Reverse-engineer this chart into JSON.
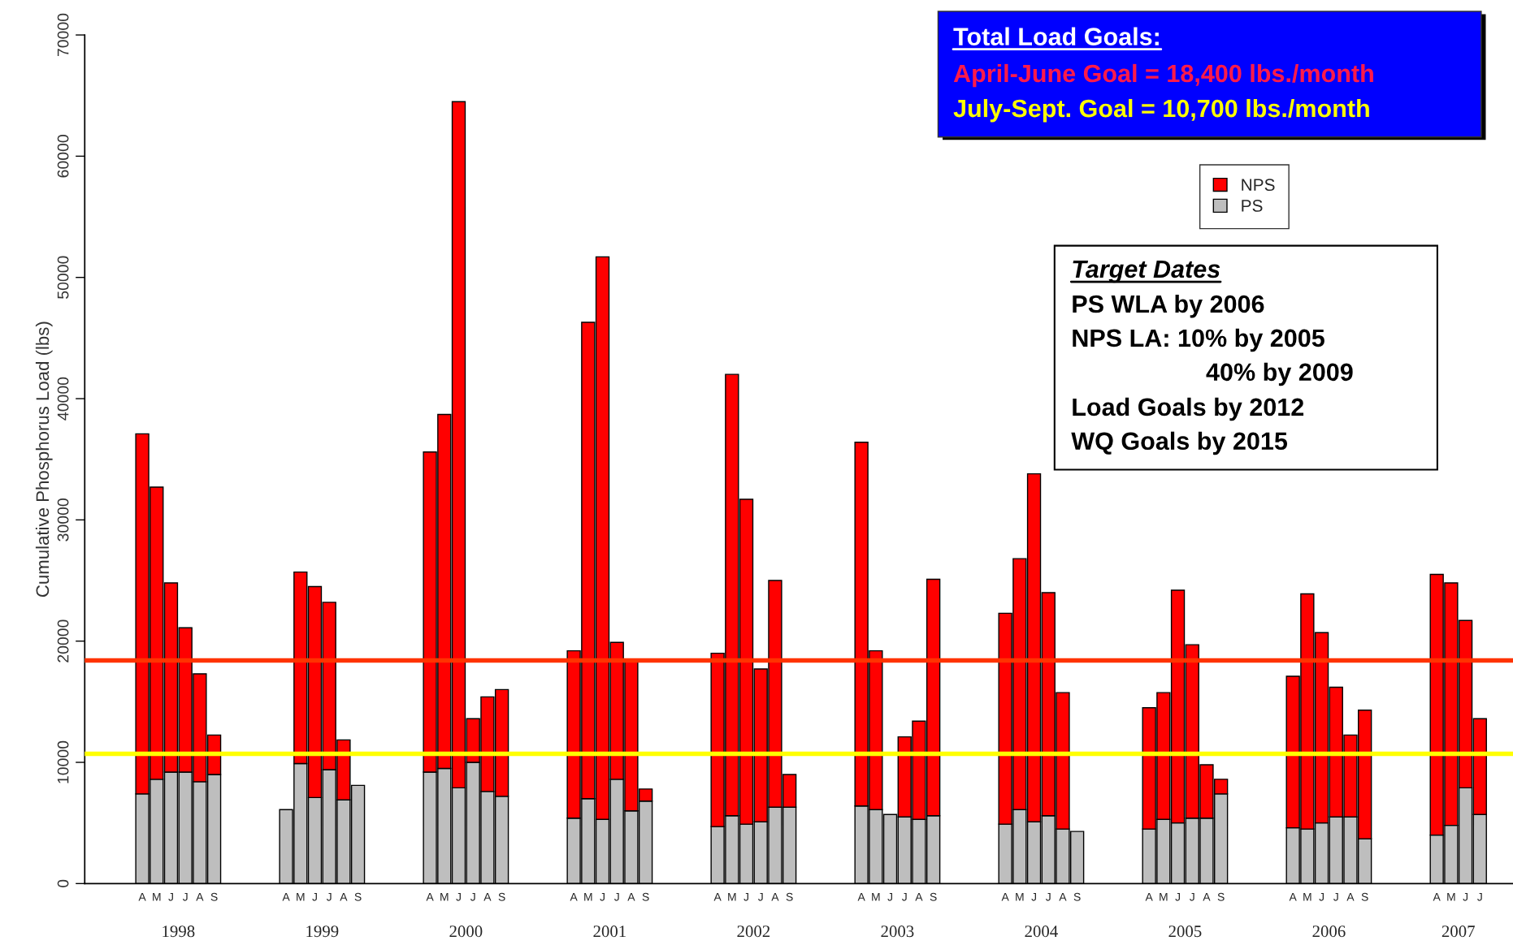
{
  "chart_data": {
    "type": "bar",
    "stacked": true,
    "ylabel": "Cumulative Phosphorus Load (lbs)",
    "categories": [
      "A",
      "M",
      "J",
      "J",
      "A",
      "S",
      null,
      null,
      null,
      null,
      "A",
      "M",
      "J",
      "J",
      "A",
      "S",
      null,
      null,
      null,
      null,
      "A",
      "M",
      "J",
      "J",
      "A",
      "S",
      null,
      null,
      null,
      null,
      "A",
      "M",
      "J",
      "J",
      "A",
      "S",
      null,
      null,
      null,
      null,
      "A",
      "M",
      "J",
      "J",
      "A",
      "S",
      null,
      null,
      null,
      null,
      "A",
      "M",
      "J",
      "J",
      "A",
      "S",
      null,
      null,
      null,
      null,
      "A",
      "M",
      "J",
      "J",
      "A",
      "S",
      null,
      null,
      null,
      null,
      "A",
      "M",
      "J",
      "J",
      "A",
      "S",
      null,
      null,
      null,
      null,
      "A",
      "M",
      "J",
      "J",
      "A",
      "S",
      null,
      null,
      null,
      null,
      "A",
      "M",
      "J",
      "J"
    ],
    "series": [
      {
        "name": "PS",
        "color": "#bebebe",
        "values": [
          7400,
          8600,
          9200,
          9200,
          8400,
          9000,
          null,
          null,
          null,
          null,
          6100,
          9900,
          7100,
          9400,
          6900,
          8100,
          null,
          null,
          null,
          null,
          9200,
          9500,
          7900,
          10000,
          7600,
          7200,
          null,
          null,
          null,
          null,
          5400,
          7000,
          5300,
          8600,
          6000,
          6800,
          null,
          null,
          null,
          null,
          4700,
          5600,
          4900,
          5100,
          6300,
          6300,
          null,
          null,
          null,
          null,
          6400,
          6100,
          5700,
          5500,
          5300,
          5600,
          null,
          null,
          null,
          null,
          4900,
          6100,
          5100,
          5600,
          4500,
          4300,
          null,
          null,
          null,
          null,
          4500,
          5300,
          5000,
          5400,
          5400,
          7400,
          null,
          null,
          null,
          null,
          4600,
          4500,
          5000,
          5500,
          5500,
          3700,
          null,
          null,
          null,
          null,
          4000,
          4800,
          7900,
          5700
        ]
      },
      {
        "name": "NPS",
        "color": "#ff0000",
        "values": [
          29700,
          24100,
          15600,
          11900,
          8900,
          3250,
          null,
          null,
          null,
          null,
          null,
          15800,
          17400,
          13800,
          4950,
          null,
          null,
          null,
          null,
          null,
          26400,
          29200,
          56600,
          3600,
          7800,
          8800,
          null,
          null,
          null,
          null,
          13800,
          39300,
          46400,
          11300,
          12400,
          1000,
          null,
          null,
          null,
          null,
          14300,
          36400,
          26800,
          12600,
          18700,
          2700,
          null,
          null,
          null,
          null,
          30000,
          13100,
          null,
          6600,
          8100,
          19500,
          null,
          null,
          null,
          null,
          17400,
          20700,
          28700,
          18400,
          11250,
          null,
          null,
          null,
          null,
          null,
          10000,
          10450,
          19200,
          14300,
          4400,
          1200,
          null,
          null,
          null,
          null,
          12500,
          19400,
          15700,
          10700,
          6750,
          10600,
          null,
          null,
          null,
          null,
          21500,
          20000,
          13800,
          7900
        ]
      }
    ],
    "ylim": [
      0,
      70000
    ],
    "yticks": [
      0,
      10000,
      20000,
      30000,
      40000,
      50000,
      60000,
      70000
    ],
    "ref_lines": [
      {
        "axis": "y",
        "value": 18400,
        "color": "#ff3300"
      },
      {
        "axis": "y",
        "value": 10700,
        "color": "#ffff00"
      }
    ],
    "legend": "top right",
    "grid": false,
    "annotations": [
      "Total Load Goals:",
      "April-June Goal = 18,400 lbs./month",
      "July-Sept. Goal = 10,700 lbs./month",
      "Target Dates",
      "PS WLA by 2006",
      "NPS LA: 10% by 2005",
      "40% by 2009",
      "Load Goals by 2012",
      "WQ Goals by 2015",
      "1998",
      "1999",
      "2000",
      "2001",
      "2002",
      "2003",
      "2004",
      "2005",
      "2006",
      "2007"
    ]
  }
}
